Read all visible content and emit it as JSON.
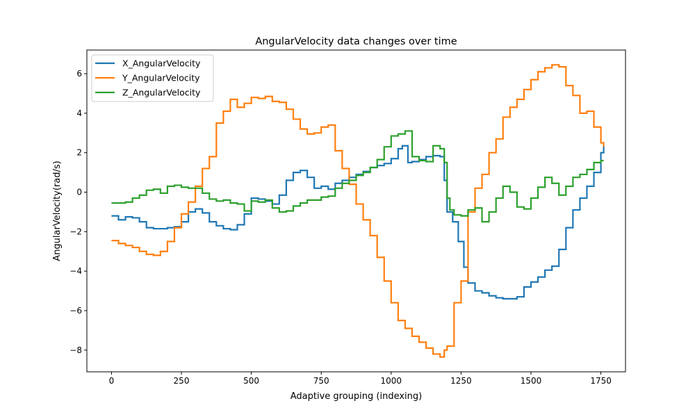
{
  "chart_data": {
    "type": "line",
    "title": "AngularVelocity data changes over time",
    "xlabel": "Adaptive grouping (indexing)",
    "ylabel": "AngularVelocity(rad/s)",
    "xlim": [
      -88,
      1838
    ],
    "ylim": [
      -9.1,
      7.2
    ],
    "x_ticks": [
      0,
      250,
      500,
      750,
      1000,
      1250,
      1500,
      1750
    ],
    "y_ticks": [
      -8,
      -6,
      -4,
      -2,
      0,
      2,
      4,
      6
    ],
    "grid": false,
    "legend_position": "top-left",
    "series": [
      {
        "name": "X_AngularVelocity",
        "color": "#1f77b4",
        "x": [
          0,
          25,
          50,
          75,
          100,
          125,
          150,
          175,
          200,
          225,
          250,
          275,
          300,
          325,
          350,
          375,
          400,
          425,
          450,
          475,
          500,
          525,
          550,
          575,
          600,
          625,
          650,
          675,
          700,
          725,
          750,
          775,
          800,
          825,
          850,
          875,
          900,
          925,
          950,
          975,
          1000,
          1025,
          1040,
          1060,
          1075,
          1100,
          1125,
          1150,
          1175,
          1190,
          1200,
          1220,
          1240,
          1260,
          1275,
          1300,
          1325,
          1350,
          1375,
          1400,
          1425,
          1450,
          1475,
          1500,
          1525,
          1550,
          1575,
          1600,
          1625,
          1650,
          1675,
          1700,
          1725,
          1750,
          1760
        ],
        "values": [
          -1.2,
          -1.4,
          -1.25,
          -1.3,
          -1.5,
          -1.8,
          -1.85,
          -1.85,
          -1.8,
          -1.75,
          -1.5,
          -1.0,
          -0.85,
          -1.05,
          -1.5,
          -1.7,
          -1.85,
          -1.9,
          -1.65,
          -1.1,
          -0.3,
          -0.35,
          -0.45,
          -0.6,
          -0.15,
          0.6,
          1.0,
          1.1,
          0.75,
          0.2,
          0.3,
          0.15,
          0.45,
          0.6,
          0.75,
          0.9,
          1.05,
          1.25,
          1.35,
          1.45,
          1.7,
          2.2,
          2.35,
          1.5,
          1.55,
          1.65,
          1.8,
          1.85,
          1.8,
          0.6,
          -1.0,
          -1.5,
          -2.5,
          -3.8,
          -4.6,
          -5.0,
          -5.1,
          -5.25,
          -5.35,
          -5.4,
          -5.4,
          -5.3,
          -4.8,
          -4.55,
          -4.3,
          -3.95,
          -3.75,
          -2.9,
          -1.8,
          -0.9,
          -0.3,
          0.3,
          1.0,
          2.0,
          2.35
        ]
      },
      {
        "name": "Y_AngularVelocity",
        "color": "#ff7f0e",
        "x": [
          0,
          25,
          50,
          75,
          100,
          125,
          150,
          175,
          200,
          225,
          250,
          275,
          300,
          325,
          350,
          375,
          400,
          425,
          450,
          475,
          500,
          525,
          550,
          575,
          600,
          625,
          650,
          675,
          700,
          725,
          750,
          775,
          800,
          825,
          850,
          875,
          900,
          925,
          950,
          975,
          1000,
          1025,
          1050,
          1075,
          1100,
          1125,
          1150,
          1175,
          1190,
          1200,
          1225,
          1250,
          1275,
          1300,
          1325,
          1350,
          1375,
          1400,
          1425,
          1450,
          1475,
          1500,
          1525,
          1550,
          1575,
          1600,
          1625,
          1650,
          1675,
          1700,
          1725,
          1750,
          1760
        ],
        "values": [
          -2.45,
          -2.6,
          -2.7,
          -2.8,
          -3.0,
          -3.15,
          -3.2,
          -3.0,
          -2.5,
          -1.8,
          -1.1,
          -0.5,
          0.3,
          1.2,
          1.8,
          3.5,
          4.1,
          4.7,
          4.3,
          4.5,
          4.8,
          4.75,
          4.85,
          4.6,
          4.55,
          4.2,
          3.7,
          3.2,
          2.95,
          3.0,
          3.3,
          3.4,
          2.1,
          1.2,
          0.4,
          -0.6,
          -1.4,
          -2.2,
          -3.3,
          -4.5,
          -5.6,
          -6.5,
          -6.9,
          -7.3,
          -7.6,
          -7.9,
          -8.2,
          -8.35,
          -8.0,
          -7.8,
          -5.6,
          -4.5,
          -1.0,
          0.2,
          0.9,
          2.0,
          2.7,
          3.8,
          4.3,
          4.7,
          5.2,
          5.7,
          6.1,
          6.3,
          6.45,
          6.35,
          5.4,
          4.9,
          4.0,
          4.1,
          3.3,
          2.5,
          2.3
        ]
      },
      {
        "name": "Z_AngularVelocity",
        "color": "#2ca02c",
        "x": [
          0,
          25,
          50,
          75,
          100,
          125,
          150,
          175,
          200,
          225,
          250,
          275,
          300,
          325,
          350,
          375,
          400,
          425,
          450,
          475,
          500,
          525,
          550,
          575,
          600,
          625,
          650,
          675,
          700,
          725,
          750,
          775,
          800,
          825,
          850,
          875,
          900,
          925,
          950,
          975,
          1000,
          1025,
          1050,
          1075,
          1100,
          1125,
          1150,
          1175,
          1190,
          1200,
          1210,
          1225,
          1250,
          1275,
          1300,
          1325,
          1350,
          1375,
          1400,
          1425,
          1450,
          1475,
          1500,
          1525,
          1550,
          1575,
          1600,
          1625,
          1650,
          1675,
          1700,
          1725,
          1750,
          1760
        ],
        "values": [
          -0.55,
          -0.55,
          -0.5,
          -0.3,
          -0.15,
          0.1,
          0.15,
          -0.05,
          0.3,
          0.35,
          0.25,
          0.2,
          0.2,
          -0.05,
          -0.35,
          -0.45,
          -0.4,
          -0.55,
          -0.6,
          -0.95,
          -0.45,
          -0.5,
          -0.4,
          -0.8,
          -1.0,
          -0.95,
          -0.7,
          -0.55,
          -0.4,
          -0.4,
          -0.25,
          -0.2,
          0.2,
          0.45,
          0.6,
          0.85,
          1.0,
          1.25,
          1.65,
          2.3,
          2.85,
          2.95,
          3.1,
          1.8,
          1.6,
          1.55,
          2.35,
          2.2,
          1.5,
          -0.3,
          -0.9,
          -1.15,
          -1.2,
          -0.9,
          -0.8,
          -1.5,
          -1.0,
          -0.3,
          0.3,
          0.0,
          -0.75,
          -0.85,
          -0.3,
          0.25,
          0.75,
          0.45,
          -0.15,
          0.3,
          0.75,
          0.9,
          1.15,
          1.5,
          1.6,
          1.6
        ]
      }
    ]
  }
}
